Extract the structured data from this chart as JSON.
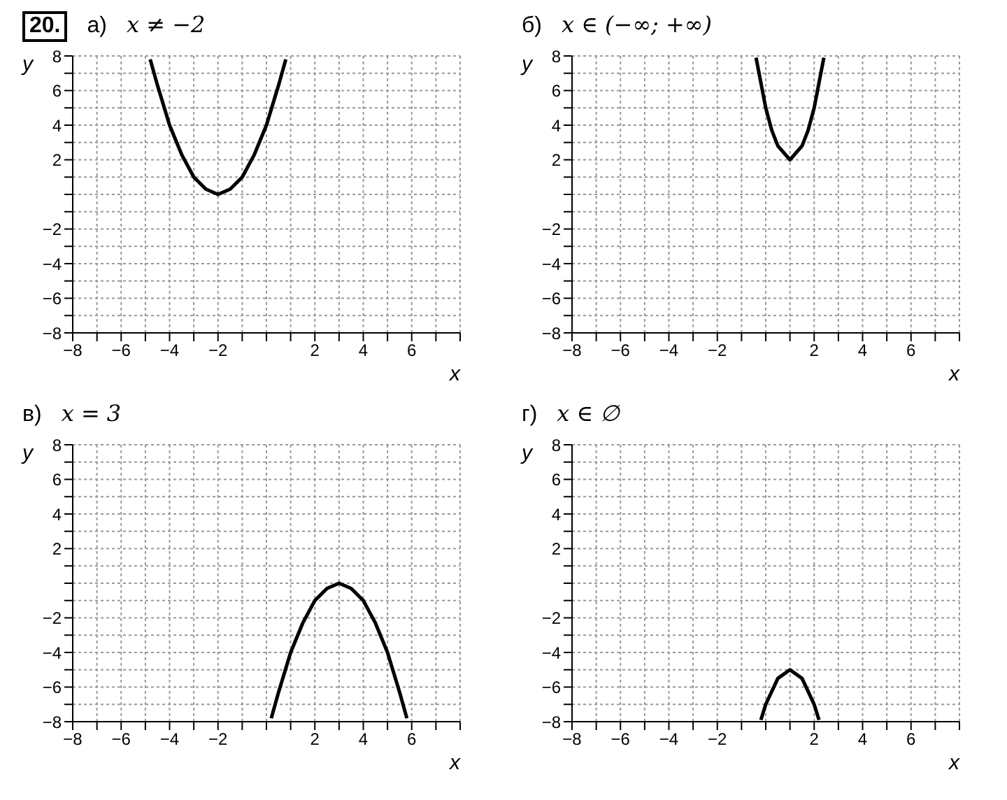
{
  "chart_data": [
    {
      "type": "line",
      "title": "а)",
      "xlabel": "x",
      "ylabel": "y",
      "annotations": [
        "20.",
        "x ≠ −2"
      ],
      "xlim": [
        -8,
        8
      ],
      "ylim": [
        -8,
        8
      ],
      "xticks": [
        {
          "value": -8,
          "label": "−8"
        },
        {
          "value": -7,
          "label": null
        },
        {
          "value": -6,
          "label": "−6"
        },
        {
          "value": -5,
          "label": null
        },
        {
          "value": -4,
          "label": "−4"
        },
        {
          "value": -3,
          "label": null
        },
        {
          "value": -2,
          "label": "−2"
        },
        {
          "value": -1,
          "label": null
        },
        {
          "value": 0,
          "label": null
        },
        {
          "value": 1,
          "label": null
        },
        2,
        {
          "value": 3,
          "label": null
        },
        4,
        {
          "value": 5,
          "label": null
        },
        6,
        {
          "value": 7,
          "label": null
        },
        {
          "value": 8,
          "label": null
        }
      ],
      "yticks": [
        {
          "value": -8,
          "label": "−8"
        },
        {
          "value": -7,
          "label": null
        },
        {
          "value": -6,
          "label": "−6"
        },
        {
          "value": -5,
          "label": null
        },
        {
          "value": -4,
          "label": "−4"
        },
        {
          "value": -3,
          "label": null
        },
        {
          "value": -2,
          "label": "−2"
        },
        {
          "value": -1,
          "label": null
        },
        {
          "value": 0,
          "label": null
        },
        {
          "value": 1,
          "label": null
        },
        2,
        {
          "value": 3,
          "label": null
        },
        4,
        {
          "value": 5,
          "label": null
        },
        6,
        {
          "value": 7,
          "label": null
        },
        8
      ],
      "grid": true,
      "marker": "none",
      "series": [
        {
          "color": "#000000",
          "x": [
            -4.8,
            -4.5,
            -4,
            -3.5,
            -3,
            -2.5,
            -2,
            -1.5,
            -1,
            -0.5,
            0,
            0.5,
            0.8
          ],
          "values": [
            7.8,
            6.3,
            4,
            2.3,
            1,
            0.3,
            0,
            0.3,
            1,
            2.3,
            4,
            6.3,
            7.8
          ]
        }
      ]
    },
    {
      "type": "line",
      "title": "б)",
      "xlabel": "x",
      "ylabel": "y",
      "annotations": [
        "x ∈ (−∞; +∞)"
      ],
      "xlim": [
        -8,
        8
      ],
      "ylim": [
        -8,
        8
      ],
      "xticks": [
        {
          "value": -8,
          "label": "−8"
        },
        {
          "value": -7,
          "label": null
        },
        {
          "value": -6,
          "label": "−6"
        },
        {
          "value": -5,
          "label": null
        },
        {
          "value": -4,
          "label": "−4"
        },
        {
          "value": -3,
          "label": null
        },
        {
          "value": -2,
          "label": "−2"
        },
        {
          "value": -1,
          "label": null
        },
        {
          "value": 0,
          "label": null
        },
        {
          "value": 1,
          "label": null
        },
        2,
        {
          "value": 3,
          "label": null
        },
        4,
        {
          "value": 5,
          "label": null
        },
        6,
        {
          "value": 7,
          "label": null
        },
        {
          "value": 8,
          "label": null
        }
      ],
      "yticks": [
        {
          "value": -8,
          "label": "−8"
        },
        {
          "value": -7,
          "label": null
        },
        {
          "value": -6,
          "label": "−6"
        },
        {
          "value": -5,
          "label": null
        },
        {
          "value": -4,
          "label": "−4"
        },
        {
          "value": -3,
          "label": null
        },
        {
          "value": -2,
          "label": "−2"
        },
        {
          "value": -1,
          "label": null
        },
        {
          "value": 0,
          "label": null
        },
        {
          "value": 1,
          "label": null
        },
        2,
        {
          "value": 3,
          "label": null
        },
        4,
        {
          "value": 5,
          "label": null
        },
        6,
        {
          "value": 7,
          "label": null
        },
        8
      ],
      "grid": true,
      "marker": "none",
      "series": [
        {
          "color": "#000000",
          "x": [
            -0.4,
            0,
            0.25,
            0.5,
            1,
            1.5,
            1.75,
            2,
            2.4
          ],
          "values": [
            7.9,
            5,
            3.7,
            2.8,
            2,
            2.8,
            3.7,
            5,
            7.9
          ]
        }
      ]
    },
    {
      "type": "line",
      "title": "в)",
      "xlabel": "x",
      "ylabel": "y",
      "annotations": [
        "x = 3"
      ],
      "xlim": [
        -8,
        8
      ],
      "ylim": [
        -8,
        8
      ],
      "xticks": [
        {
          "value": -8,
          "label": "−8"
        },
        {
          "value": -7,
          "label": null
        },
        {
          "value": -6,
          "label": "−6"
        },
        {
          "value": -5,
          "label": null
        },
        {
          "value": -4,
          "label": "−4"
        },
        {
          "value": -3,
          "label": null
        },
        {
          "value": -2,
          "label": "−2"
        },
        {
          "value": -1,
          "label": null
        },
        {
          "value": 0,
          "label": null
        },
        {
          "value": 1,
          "label": null
        },
        2,
        {
          "value": 3,
          "label": null
        },
        4,
        {
          "value": 5,
          "label": null
        },
        6,
        {
          "value": 7,
          "label": null
        },
        {
          "value": 8,
          "label": null
        }
      ],
      "yticks": [
        {
          "value": -8,
          "label": "−8"
        },
        {
          "value": -7,
          "label": null
        },
        {
          "value": -6,
          "label": "−6"
        },
        {
          "value": -5,
          "label": null
        },
        {
          "value": -4,
          "label": "−4"
        },
        {
          "value": -3,
          "label": null
        },
        {
          "value": -2,
          "label": "−2"
        },
        {
          "value": -1,
          "label": null
        },
        {
          "value": 0,
          "label": null
        },
        {
          "value": 1,
          "label": null
        },
        2,
        {
          "value": 3,
          "label": null
        },
        4,
        {
          "value": 5,
          "label": null
        },
        6,
        {
          "value": 7,
          "label": null
        },
        8
      ],
      "grid": true,
      "marker": "none",
      "series": [
        {
          "color": "#000000",
          "x": [
            0.2,
            0.5,
            1,
            1.5,
            2,
            2.5,
            3,
            3.5,
            4,
            4.5,
            5,
            5.5,
            5.8
          ],
          "values": [
            -7.8,
            -6.3,
            -4,
            -2.3,
            -1,
            -0.3,
            0,
            -0.3,
            -1,
            -2.3,
            -4,
            -6.3,
            -7.8
          ]
        }
      ]
    },
    {
      "type": "line",
      "title": "г)",
      "xlabel": "x",
      "ylabel": "y",
      "annotations": [
        "x ∈ ∅"
      ],
      "xlim": [
        -8,
        8
      ],
      "ylim": [
        -8,
        8
      ],
      "xticks": [
        {
          "value": -8,
          "label": "−8"
        },
        {
          "value": -7,
          "label": null
        },
        {
          "value": -6,
          "label": "−6"
        },
        {
          "value": -5,
          "label": null
        },
        {
          "value": -4,
          "label": "−4"
        },
        {
          "value": -3,
          "label": null
        },
        {
          "value": -2,
          "label": "−2"
        },
        {
          "value": -1,
          "label": null
        },
        {
          "value": 0,
          "label": null
        },
        {
          "value": 1,
          "label": null
        },
        2,
        {
          "value": 3,
          "label": null
        },
        4,
        {
          "value": 5,
          "label": null
        },
        6,
        {
          "value": 7,
          "label": null
        },
        {
          "value": 8,
          "label": null
        }
      ],
      "yticks": [
        {
          "value": -8,
          "label": "−8"
        },
        {
          "value": -7,
          "label": null
        },
        {
          "value": -6,
          "label": "−6"
        },
        {
          "value": -5,
          "label": null
        },
        {
          "value": -4,
          "label": "−4"
        },
        {
          "value": -3,
          "label": null
        },
        {
          "value": -2,
          "label": "−2"
        },
        {
          "value": -1,
          "label": null
        },
        {
          "value": 0,
          "label": null
        },
        {
          "value": 1,
          "label": null
        },
        2,
        {
          "value": 3,
          "label": null
        },
        4,
        {
          "value": 5,
          "label": null
        },
        6,
        {
          "value": 7,
          "label": null
        },
        8
      ],
      "grid": true,
      "marker": "none",
      "series": [
        {
          "color": "#000000",
          "x": [
            -0.2,
            0,
            0.5,
            1,
            1.5,
            2,
            2.2
          ],
          "values": [
            -7.9,
            -7,
            -5.5,
            -5,
            -5.5,
            -7,
            -7.9
          ]
        }
      ]
    }
  ]
}
